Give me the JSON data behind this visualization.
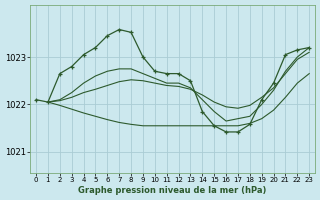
{
  "xlabel": "Graphe pression niveau de la mer (hPa)",
  "background_color": "#cce8ee",
  "grid_color": "#aaccd4",
  "line_color": "#2d5a2d",
  "xlim": [
    -0.5,
    23.5
  ],
  "ylim": [
    1020.55,
    1024.1
  ],
  "yticks": [
    1021,
    1022,
    1023
  ],
  "xticks": [
    0,
    1,
    2,
    3,
    4,
    5,
    6,
    7,
    8,
    9,
    10,
    11,
    12,
    13,
    14,
    15,
    16,
    17,
    18,
    19,
    20,
    21,
    22,
    23
  ],
  "lines": [
    {
      "x": [
        0,
        1,
        2,
        3,
        4,
        5,
        6,
        7,
        8,
        9,
        10,
        11,
        12,
        13,
        14,
        15,
        16,
        17,
        18,
        19,
        20,
        21,
        22,
        23
      ],
      "y": [
        1022.1,
        1022.05,
        1022.65,
        1022.8,
        1023.05,
        1023.2,
        1023.45,
        1023.58,
        1023.52,
        1023.0,
        1022.7,
        1022.65,
        1022.65,
        1022.5,
        1021.85,
        1021.55,
        1021.42,
        1021.42,
        1021.58,
        1022.1,
        1022.45,
        1023.05,
        1023.15,
        1023.2
      ],
      "has_markers": true
    },
    {
      "x": [
        1,
        2,
        3,
        4,
        5,
        6,
        7,
        8,
        9,
        10,
        11,
        12,
        13,
        14,
        15,
        16,
        17,
        18,
        19,
        20,
        21,
        22,
        23
      ],
      "y": [
        1022.05,
        1022.1,
        1022.25,
        1022.45,
        1022.6,
        1022.7,
        1022.75,
        1022.75,
        1022.65,
        1022.55,
        1022.45,
        1022.45,
        1022.35,
        1022.1,
        1021.85,
        1021.65,
        1021.7,
        1021.75,
        1022.0,
        1022.3,
        1022.7,
        1023.0,
        1023.2
      ],
      "has_markers": false
    },
    {
      "x": [
        1,
        2,
        3,
        4,
        5,
        6,
        7,
        8,
        9,
        10,
        11,
        12,
        13,
        14,
        15,
        16,
        17,
        18,
        19,
        20,
        21,
        22,
        23
      ],
      "y": [
        1022.05,
        1022.08,
        1022.15,
        1022.25,
        1022.32,
        1022.4,
        1022.48,
        1022.52,
        1022.5,
        1022.45,
        1022.4,
        1022.38,
        1022.32,
        1022.2,
        1022.05,
        1021.95,
        1021.92,
        1021.98,
        1022.15,
        1022.35,
        1022.65,
        1022.95,
        1023.1
      ],
      "has_markers": false
    },
    {
      "x": [
        1,
        2,
        3,
        4,
        5,
        6,
        7,
        8,
        9,
        10,
        11,
        12,
        13,
        14,
        15,
        16,
        17,
        18,
        19,
        20,
        21,
        22,
        23
      ],
      "y": [
        1022.05,
        1021.98,
        1021.9,
        1021.82,
        1021.75,
        1021.68,
        1021.62,
        1021.58,
        1021.55,
        1021.55,
        1021.55,
        1021.55,
        1021.55,
        1021.55,
        1021.55,
        1021.55,
        1021.55,
        1021.6,
        1021.7,
        1021.88,
        1022.15,
        1022.45,
        1022.65
      ],
      "has_markers": false
    }
  ]
}
